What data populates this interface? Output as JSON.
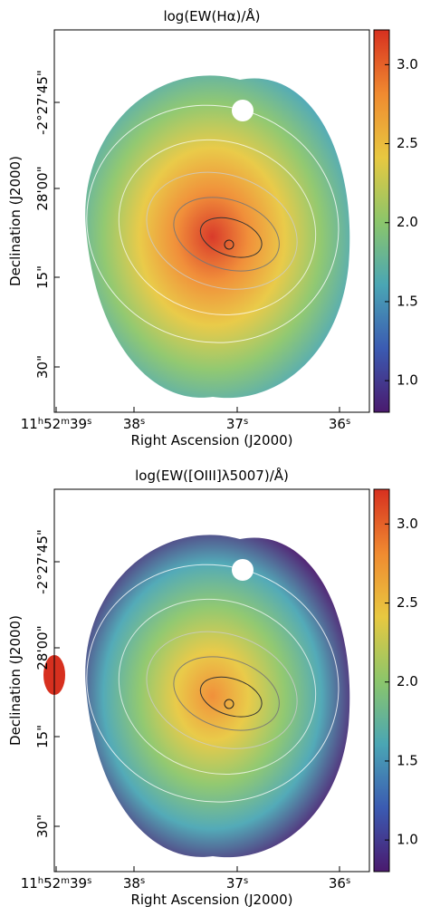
{
  "chart_data": [
    {
      "type": "image",
      "title": "log(EW(Hα)/Å)",
      "xlabel": "Right Ascension (J2000)",
      "ylabel": "Declination (J2000)",
      "xtick_labels": [
        "11h52m39s",
        "38s",
        "37s",
        "36s"
      ],
      "ytick_labels": [
        "-2°27'45\"",
        "28'00\"",
        "15\"",
        "30\""
      ],
      "colorbar": {
        "ylim": [
          0.8,
          3.22
        ],
        "yticks": [
          {
            "value": 1,
            "label": "1.0"
          },
          1.5,
          {
            "value": 2,
            "label": "2.0"
          },
          2.5,
          {
            "value": 3,
            "label": "3.0"
          }
        ],
        "colors": [
          "#4a1a6e",
          "#3b5bb2",
          "#4aa6b4",
          "#8cc66a",
          "#e8c840",
          "#f08a30",
          "#d7301f"
        ]
      }
    },
    {
      "type": "image",
      "title": "log(EW([OIII]λ5007)/Å)",
      "xlabel": "Right Ascension (J2000)",
      "ylabel": "Declination (J2000)",
      "xtick_labels": [
        "11h52m39s",
        "38s",
        "37s",
        "36s"
      ],
      "ytick_labels": [
        "-2°27'45\"",
        "28'00\"",
        "15\"",
        "30\""
      ],
      "colorbar": {
        "ylim": [
          0.8,
          3.22
        ],
        "yticks": [
          {
            "value": 1,
            "label": "1.0"
          },
          1.5,
          {
            "value": 2,
            "label": "2.0"
          },
          2.5,
          {
            "value": 3,
            "label": "3.0"
          }
        ],
        "colors": [
          "#4a1a6e",
          "#3b5bb2",
          "#4aa6b4",
          "#8cc66a",
          "#e8c840",
          "#f08a30",
          "#d7301f"
        ]
      }
    }
  ]
}
